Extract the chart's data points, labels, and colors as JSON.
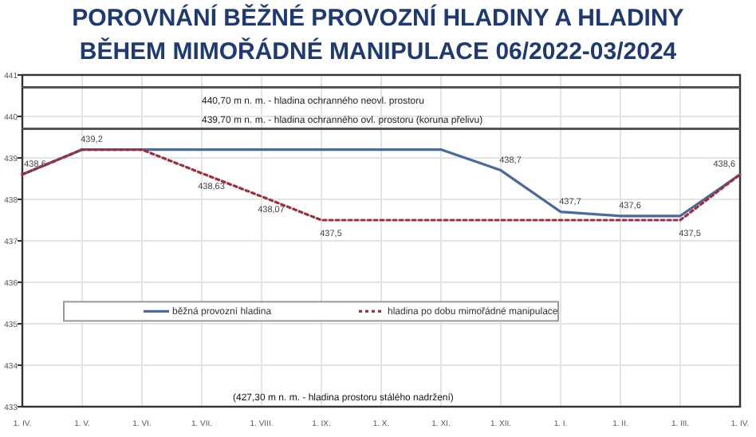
{
  "chart_data": {
    "type": "line",
    "title": "POROVNÁNÍ BĚŽNÉ PROVOZNÍ HLADINY A HLADINY\nBĚHEM MIMOŘÁDNÉ MANIPULACE 06/2022-03/2024",
    "categories": [
      "1. IV.",
      "1. V.",
      "1. VI.",
      "1. VII.",
      "1. VIII.",
      "1. IX.",
      "1. X.",
      "1. XI.",
      "1. XII.",
      "1. I.",
      "1. II.",
      "1. III.",
      "1. IV."
    ],
    "series": [
      {
        "name": "běžná provozní hladina",
        "color": "#4a6a9c",
        "line_style": "solid",
        "values": [
          438.6,
          439.2,
          439.2,
          439.2,
          439.2,
          439.2,
          439.2,
          439.2,
          438.7,
          437.7,
          437.6,
          437.6,
          438.6
        ],
        "value_labels": [
          "438,6",
          "439,2",
          null,
          null,
          null,
          null,
          null,
          null,
          "438,7",
          "437,7",
          "437,6",
          null,
          "438,6"
        ]
      },
      {
        "name": "hladina po dobu mimořádné manipulace",
        "color": "#9c2f3a",
        "line_style": "dotted",
        "values": [
          438.6,
          439.2,
          439.2,
          438.63,
          438.07,
          437.5,
          437.5,
          437.5,
          437.5,
          437.5,
          437.5,
          437.5,
          438.6
        ],
        "value_labels": [
          null,
          null,
          null,
          "438,63",
          "438,07",
          "437,5",
          null,
          null,
          null,
          null,
          null,
          "437,5",
          null
        ]
      }
    ],
    "ylim": [
      433,
      441
    ],
    "yticks": [
      433,
      434,
      435,
      436,
      437,
      438,
      439,
      440,
      441
    ],
    "ref_lines": [
      {
        "axis": "y",
        "value": 440.7,
        "label": "440,70 m n. m. - hladina ochranného neovl. prostoru",
        "color": "#555555"
      },
      {
        "axis": "y",
        "value": 439.7,
        "label": "439,70 m n. m. - hladina ochranného ovl. prostoru (koruna přelivu)",
        "color": "#555555"
      }
    ],
    "annotations": [
      "(427,30 m n. m. - hladina prostoru stálého nadržení)"
    ],
    "grid": true,
    "legend": "bottom",
    "marker": "none"
  }
}
